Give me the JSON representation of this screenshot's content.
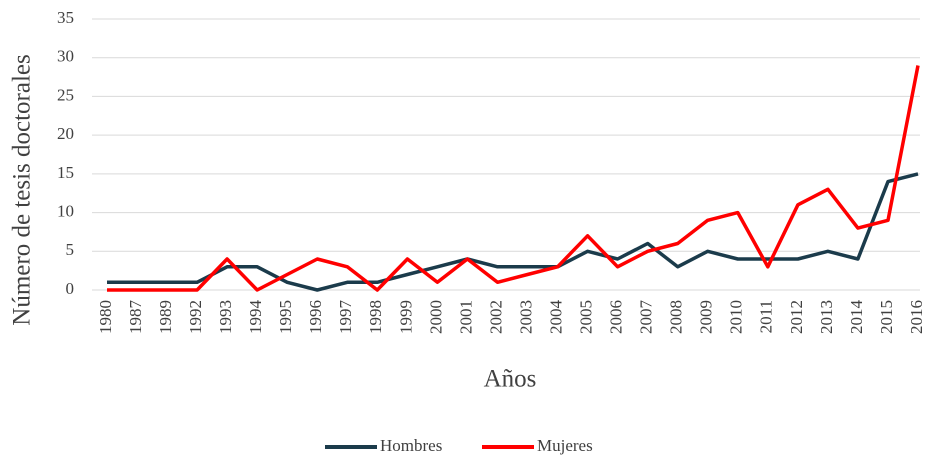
{
  "chart_data": {
    "type": "line",
    "x_label": "Años",
    "y_label": "Número de tesis doctorales",
    "categories": [
      "1980",
      "1987",
      "1989",
      "1992",
      "1993",
      "1994",
      "1995",
      "1996",
      "1997",
      "1998",
      "1999",
      "2000",
      "2001",
      "2002",
      "2003",
      "2004",
      "2005",
      "2006",
      "2007",
      "2008",
      "2009",
      "2010",
      "2011",
      "2012",
      "2013",
      "2014",
      "2015",
      "2016"
    ],
    "series": [
      {
        "name": "Hombres",
        "color": "#1b3b4b",
        "values": [
          1,
          1,
          1,
          1,
          3,
          3,
          1,
          0,
          1,
          1,
          2,
          3,
          4,
          3,
          3,
          3,
          5,
          4,
          6,
          3,
          5,
          4,
          4,
          4,
          5,
          4,
          14,
          15
        ]
      },
      {
        "name": "Mujeres",
        "color": "#ff0000",
        "values": [
          0,
          0,
          0,
          0,
          4,
          0,
          2,
          4,
          3,
          0,
          4,
          1,
          4,
          1,
          2,
          3,
          7,
          3,
          5,
          6,
          9,
          10,
          3,
          11,
          13,
          8,
          9,
          29
        ]
      }
    ],
    "ylim": [
      0,
      35
    ],
    "yticks": [
      0,
      5,
      10,
      15,
      20,
      25,
      30,
      35
    ],
    "grid": true,
    "legend": "bottom"
  }
}
